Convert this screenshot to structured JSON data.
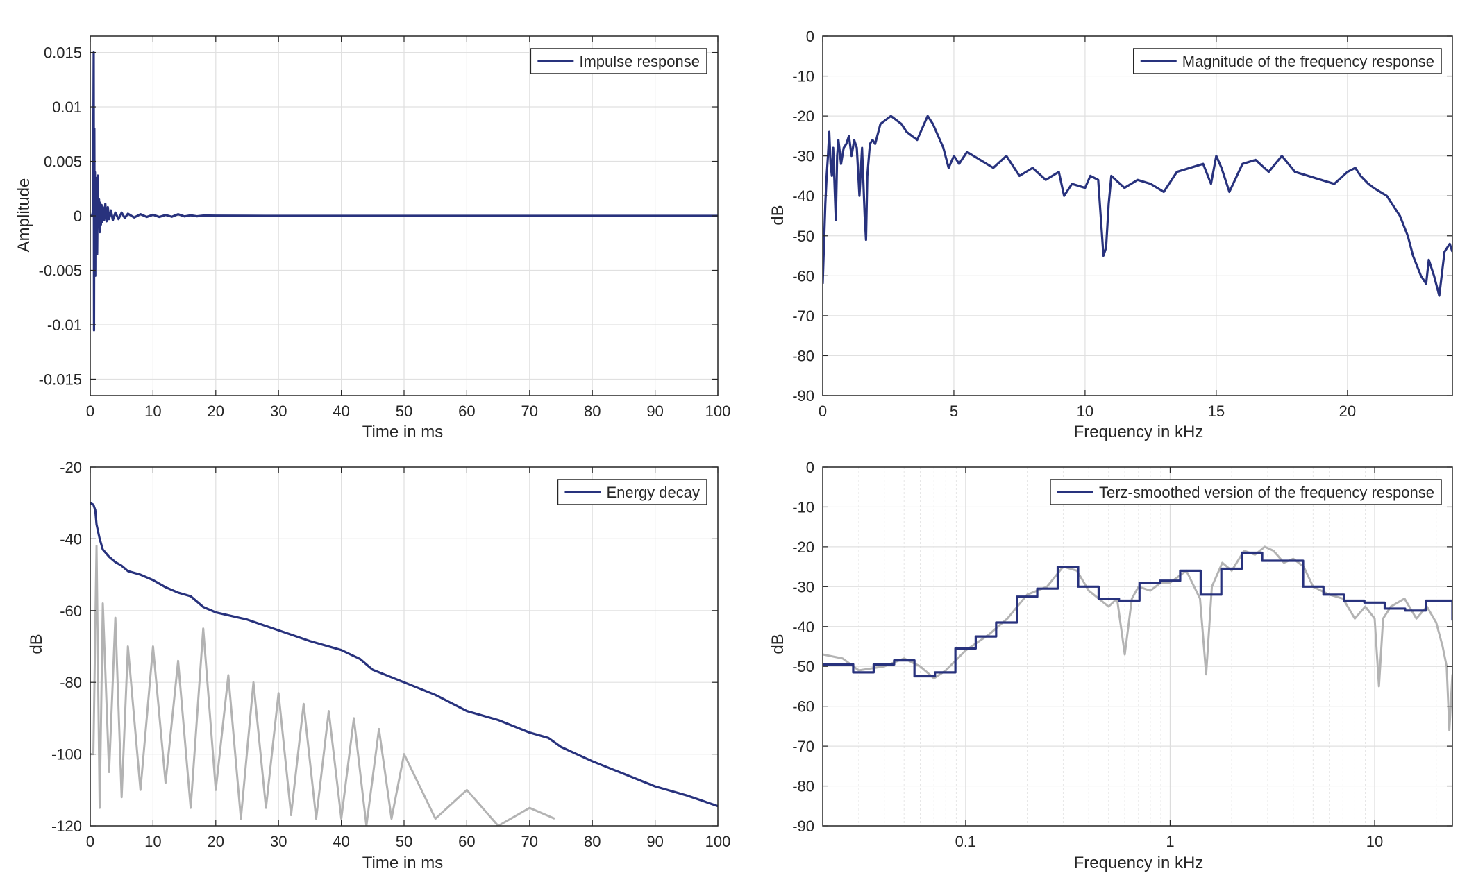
{
  "chart_data": [
    {
      "type": "line",
      "xlabel": "Time in ms",
      "ylabel": "Amplitude",
      "xlim": [
        0,
        100
      ],
      "ylim": [
        -0.0165,
        0.0165
      ],
      "xticks": [
        0,
        10,
        20,
        30,
        40,
        50,
        60,
        70,
        80,
        90,
        100
      ],
      "xtick_labels": [
        "0",
        "10",
        "20",
        "30",
        "40",
        "50",
        "60",
        "70",
        "80",
        "90",
        "100"
      ],
      "yticks": [
        0.015,
        0.01,
        0.005,
        0,
        -0.005,
        -0.01,
        -0.015
      ],
      "ytick_labels": [
        "0.015",
        "0.01",
        "0.005",
        "0",
        "-0.005",
        "-0.01",
        "-0.015"
      ],
      "grid": true,
      "legend": {
        "position": "top-right"
      },
      "series": [
        {
          "name": "Impulse response",
          "color": "#28327d",
          "x": [
            0,
            0.3,
            0.45,
            0.55,
            0.6,
            0.65,
            0.7,
            0.75,
            0.8,
            0.85,
            0.9,
            1.0,
            1.1,
            1.2,
            1.3,
            1.4,
            1.5,
            1.6,
            1.7,
            1.8,
            1.9,
            2.0,
            2.2,
            2.4,
            2.6,
            2.8,
            3.0,
            3.3,
            3.6,
            4.0,
            4.5,
            5.0,
            5.5,
            6.0,
            7.0,
            8.0,
            9.0,
            10.0,
            11.0,
            12.0,
            13.0,
            14.0,
            15.0,
            16.0,
            17.0,
            18.0,
            20.0,
            25.0,
            30.0,
            40.0,
            60.0,
            80.0,
            100.0
          ],
          "values": [
            0,
            0,
            0.0005,
            0.015,
            -0.0105,
            0.008,
            -0.004,
            0.004,
            -0.0055,
            0.0035,
            -0.0025,
            0.002,
            -0.0035,
            0.0037,
            -0.001,
            0.0015,
            -0.0015,
            0.0012,
            -0.0008,
            0.001,
            -0.0006,
            0.0008,
            -0.0004,
            0.0011,
            -0.0005,
            0.0008,
            -0.0003,
            0.0005,
            -0.0004,
            0.0003,
            -0.0003,
            0.0003,
            -0.0002,
            0.0002,
            -0.00015,
            0.00015,
            -0.0001,
            0.0001,
            -0.0001,
            8e-05,
            -8e-05,
            0.00015,
            -5e-05,
            5e-05,
            -4e-05,
            3e-05,
            2e-05,
            1e-05,
            0,
            0,
            0,
            0,
            0
          ]
        }
      ]
    },
    {
      "type": "line",
      "xlabel": "Frequency in kHz",
      "ylabel": "dB",
      "xlim": [
        0,
        24
      ],
      "ylim": [
        -90,
        0
      ],
      "xticks": [
        0,
        5,
        10,
        15,
        20
      ],
      "xtick_labels": [
        "0",
        "5",
        "10",
        "15",
        "20"
      ],
      "yticks": [
        0,
        -10,
        -20,
        -30,
        -40,
        -50,
        -60,
        -70,
        -80,
        -90
      ],
      "ytick_labels": [
        "0",
        "-10",
        "-20",
        "-30",
        "-40",
        "-50",
        "-60",
        "-70",
        "-80",
        "-90"
      ],
      "grid": true,
      "legend": {
        "position": "top-right"
      },
      "series": [
        {
          "name": "Magnitude of the frequency response",
          "color": "#28327d",
          "x": [
            0,
            0.05,
            0.1,
            0.15,
            0.2,
            0.25,
            0.3,
            0.35,
            0.4,
            0.5,
            0.55,
            0.6,
            0.7,
            0.8,
            0.9,
            1.0,
            1.1,
            1.2,
            1.3,
            1.4,
            1.5,
            1.6,
            1.65,
            1.7,
            1.8,
            1.9,
            2.0,
            2.2,
            2.4,
            2.6,
            2.8,
            3.0,
            3.2,
            3.4,
            3.6,
            3.8,
            4.0,
            4.2,
            4.4,
            4.6,
            4.8,
            5.0,
            5.2,
            5.5,
            6.0,
            6.5,
            7.0,
            7.5,
            8.0,
            8.5,
            9.0,
            9.2,
            9.5,
            10.0,
            10.2,
            10.5,
            10.7,
            10.8,
            10.9,
            11.0,
            11.5,
            12.0,
            12.5,
            13.0,
            13.5,
            14.0,
            14.5,
            14.8,
            15.0,
            15.2,
            15.5,
            16.0,
            16.5,
            17.0,
            17.5,
            18.0,
            18.5,
            19.0,
            19.5,
            20.0,
            20.3,
            20.5,
            20.8,
            21.0,
            21.5,
            22.0,
            22.3,
            22.5,
            22.8,
            23.0,
            23.1,
            23.3,
            23.5,
            23.7,
            23.9,
            24.0
          ],
          "values": [
            -62,
            -52,
            -42,
            -35,
            -30,
            -24,
            -32,
            -35,
            -28,
            -46,
            -30,
            -26,
            -32,
            -28,
            -27,
            -25,
            -30,
            -26,
            -28,
            -40,
            -28,
            -45,
            -51,
            -35,
            -27,
            -26,
            -27,
            -22,
            -21,
            -20,
            -21,
            -22,
            -24,
            -25,
            -26,
            -23,
            -20,
            -22,
            -25,
            -28,
            -33,
            -30,
            -32,
            -29,
            -31,
            -33,
            -30,
            -35,
            -33,
            -36,
            -34,
            -40,
            -37,
            -38,
            -35,
            -36,
            -55,
            -53,
            -42,
            -35,
            -38,
            -36,
            -37,
            -39,
            -34,
            -33,
            -32,
            -37,
            -30,
            -33,
            -39,
            -32,
            -31,
            -34,
            -30,
            -34,
            -35,
            -36,
            -37,
            -34,
            -33,
            -35,
            -37,
            -38,
            -40,
            -45,
            -50,
            -55,
            -60,
            -62,
            -56,
            -60,
            -65,
            -54,
            -52,
            -54
          ]
        }
      ]
    },
    {
      "type": "line",
      "xlabel": "Time in ms",
      "ylabel": "dB",
      "xlim": [
        0,
        100
      ],
      "ylim": [
        -120,
        -20
      ],
      "xticks": [
        0,
        10,
        20,
        30,
        40,
        50,
        60,
        70,
        80,
        90,
        100
      ],
      "xtick_labels": [
        "0",
        "10",
        "20",
        "30",
        "40",
        "50",
        "60",
        "70",
        "80",
        "90",
        "100"
      ],
      "yticks": [
        -20,
        -40,
        -60,
        -80,
        -100,
        -120
      ],
      "ytick_labels": [
        "-20",
        "-40",
        "-60",
        "-80",
        "-100",
        "-120"
      ],
      "grid": true,
      "legend": {
        "position": "top-right"
      },
      "series": [
        {
          "name": "Energy decay",
          "color": "#28327d",
          "x": [
            0,
            0.5,
            0.8,
            1,
            1.5,
            2,
            3,
            4,
            5,
            6,
            8,
            10,
            12,
            14,
            16,
            18,
            20,
            25,
            30,
            35,
            40,
            43,
            45,
            50,
            55,
            60,
            65,
            70,
            73,
            75,
            80,
            85,
            90,
            95,
            100
          ],
          "values": [
            -30,
            -30.5,
            -32,
            -36,
            -40,
            -43,
            -45,
            -46.5,
            -47.5,
            -49,
            -50,
            -51.5,
            -53.5,
            -55,
            -56,
            -59,
            -60.5,
            -62.5,
            -65.5,
            -68.5,
            -71,
            -73.5,
            -76.5,
            -80,
            -83.5,
            -88,
            -90.5,
            -94,
            -95.5,
            -98,
            -102,
            -105.5,
            -109,
            -111.5,
            -114.5
          ]
        },
        {
          "name": "",
          "color": "#b3b3b3",
          "x": [
            0,
            0.5,
            1,
            1.5,
            2,
            3,
            4,
            5,
            6,
            8,
            10,
            12,
            14,
            16,
            18,
            20,
            22,
            24,
            26,
            28,
            30,
            32,
            34,
            36,
            38,
            40,
            42,
            44,
            46,
            48,
            50,
            55,
            60,
            65,
            70,
            74
          ],
          "values": [
            -100,
            -100,
            -42,
            -115,
            -58,
            -105,
            -62,
            -112,
            -70,
            -110,
            -70,
            -108,
            -74,
            -115,
            -65,
            -110,
            -78,
            -118,
            -80,
            -115,
            -83,
            -117,
            -86,
            -118,
            -88,
            -118,
            -90,
            -120,
            -93,
            -118,
            -100,
            -118,
            -110,
            -120,
            -115,
            -118
          ]
        }
      ]
    },
    {
      "type": "line",
      "xlabel": "Frequency in kHz",
      "ylabel": "dB",
      "xscale": "log",
      "xlim": [
        0.02,
        24
      ],
      "ylim": [
        -90,
        0
      ],
      "xticks": [
        0.1,
        1,
        10
      ],
      "xtick_labels": [
        "0.1",
        "1",
        "10"
      ],
      "yticks": [
        0,
        -10,
        -20,
        -30,
        -40,
        -50,
        -60,
        -70,
        -80,
        -90
      ],
      "ytick_labels": [
        "0",
        "-10",
        "-20",
        "-30",
        "-40",
        "-50",
        "-60",
        "-70",
        "-80",
        "-90"
      ],
      "grid": true,
      "legend": {
        "position": "top-right"
      },
      "series": [
        {
          "name": "Terz-smoothed version of the frequency response",
          "color": "#28327d",
          "step": true,
          "x": [
            0.02,
            0.0224,
            0.0282,
            0.0355,
            0.0447,
            0.0562,
            0.0708,
            0.0891,
            0.112,
            0.141,
            0.178,
            0.224,
            0.282,
            0.355,
            0.447,
            0.562,
            0.708,
            0.891,
            1.12,
            1.41,
            1.78,
            2.24,
            2.82,
            3.55,
            4.47,
            5.62,
            7.08,
            8.91,
            11.2,
            14.1,
            17.8,
            24
          ],
          "values": [
            -49.5,
            -49.5,
            -51.5,
            -49.5,
            -48.5,
            -52.5,
            -51.5,
            -45.5,
            -42.5,
            -39,
            -32.5,
            -30.5,
            -25,
            -30,
            -33,
            -33.5,
            -29,
            -28.5,
            -26,
            -32,
            -25.5,
            -21.5,
            -23.5,
            -23.5,
            -30,
            -32,
            -33.5,
            -34,
            -35.5,
            -36,
            -33.5,
            -38.5
          ]
        },
        {
          "name": "",
          "color": "#b3b3b3",
          "x": [
            0.02,
            0.025,
            0.03,
            0.04,
            0.05,
            0.06,
            0.07,
            0.08,
            0.1,
            0.13,
            0.16,
            0.2,
            0.25,
            0.3,
            0.35,
            0.4,
            0.5,
            0.55,
            0.6,
            0.65,
            0.7,
            0.8,
            0.9,
            1.0,
            1.2,
            1.4,
            1.5,
            1.6,
            1.8,
            2.0,
            2.3,
            2.6,
            2.9,
            3.2,
            3.6,
            4.0,
            4.5,
            5.0,
            6.0,
            7.0,
            8.0,
            9.0,
            10.0,
            10.5,
            11.0,
            12.0,
            14.0,
            16.0,
            18.0,
            20.0,
            21.5,
            22.5,
            23.2,
            24.0
          ],
          "values": [
            -47,
            -48,
            -51,
            -50,
            -48,
            -50,
            -53,
            -51,
            -46,
            -42,
            -38,
            -32,
            -30,
            -25,
            -26,
            -31,
            -35,
            -33,
            -47,
            -33,
            -30,
            -31,
            -29,
            -29,
            -26,
            -33,
            -52,
            -30,
            -24,
            -26,
            -21,
            -22,
            -20,
            -21,
            -24,
            -23,
            -25,
            -30,
            -32,
            -33,
            -38,
            -35,
            -38,
            -55,
            -38,
            -35,
            -33,
            -38,
            -35,
            -39,
            -45,
            -50,
            -66,
            -52
          ]
        }
      ]
    }
  ]
}
